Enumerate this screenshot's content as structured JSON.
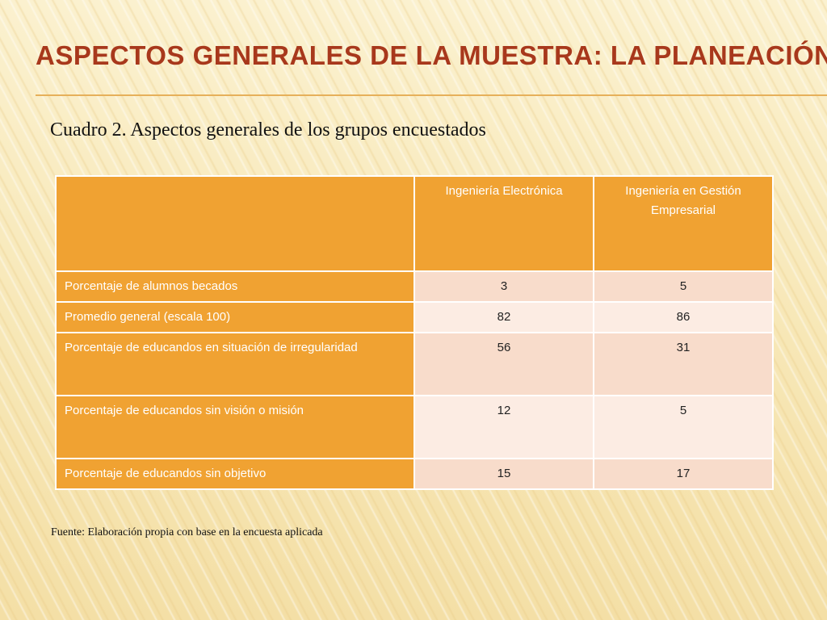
{
  "slide": {
    "title": "Aspectos generales de la muestra: la planeación",
    "caption": "Cuadro 2. Aspectos generales de los grupos encuestados",
    "source": "Fuente: Elaboración propia con base en la encuesta aplicada"
  },
  "table": {
    "headers": [
      "",
      "Ingeniería Electrónica",
      "Ingeniería en Gestión Empresarial"
    ],
    "rows": [
      {
        "label": "Porcentaje de alumnos becados",
        "values": [
          "3",
          "5"
        ]
      },
      {
        "label": "Promedio general (escala 100)",
        "values": [
          "82",
          "86"
        ]
      },
      {
        "label": "Porcentaje de educandos en situación de irregularidad",
        "values": [
          "56",
          "31"
        ]
      },
      {
        "label": "Porcentaje de educandos sin visión o misión",
        "values": [
          "12",
          "5"
        ]
      },
      {
        "label": "Porcentaje de educandos sin objetivo",
        "values": [
          "15",
          "17"
        ]
      }
    ]
  },
  "colors": {
    "title": "#a8381c",
    "header_fill": "#f0a232",
    "cell_fill_a": "#f8dccb",
    "cell_fill_b": "#fcece3"
  }
}
